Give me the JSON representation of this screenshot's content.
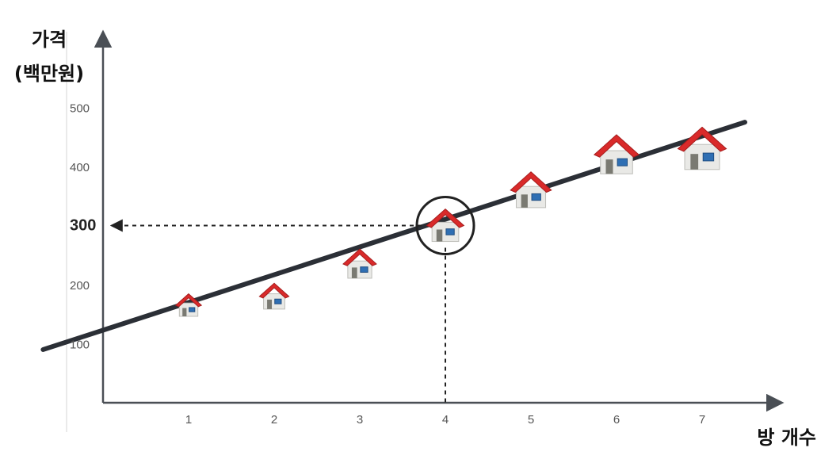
{
  "chart_data": {
    "type": "scatter",
    "ylabel_line1": "가격",
    "ylabel_line2": "(백만원)",
    "xlabel": "방 개수",
    "x_ticks": [
      "1",
      "2",
      "3",
      "4",
      "5",
      "6",
      "7"
    ],
    "y_ticks": [
      "100",
      "200",
      "300",
      "400",
      "500"
    ],
    "xlim": [
      0,
      7.8
    ],
    "ylim": [
      0,
      580
    ],
    "points": [
      {
        "x": 1,
        "y": 165
      },
      {
        "x": 2,
        "y": 180
      },
      {
        "x": 3,
        "y": 235
      },
      {
        "x": 4,
        "y": 300
      },
      {
        "x": 5,
        "y": 360
      },
      {
        "x": 6,
        "y": 420
      },
      {
        "x": 7,
        "y": 430
      }
    ],
    "trend_line": {
      "from": {
        "x": -0.7,
        "y": 90
      },
      "to": {
        "x": 7.5,
        "y": 475
      }
    },
    "highlight": {
      "x": 4,
      "y": 300,
      "label": "300"
    },
    "icon": "house-icon",
    "colors": {
      "axis": "#4a4f55",
      "trend": "#2b2f36",
      "roof": "#d92a2a",
      "wall": "#e9e9e6",
      "door": "#7a7a72",
      "window": "#2f6fb3"
    }
  }
}
